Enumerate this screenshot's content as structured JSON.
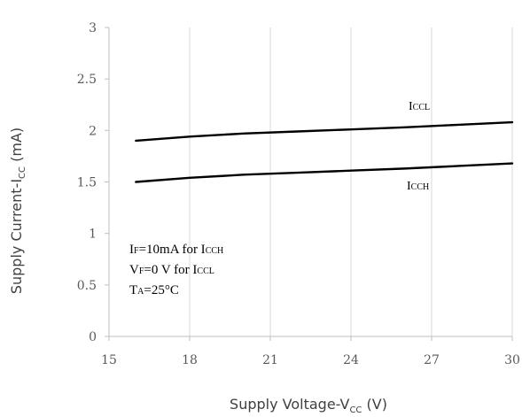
{
  "chart_data": {
    "type": "line",
    "xlabel": {
      "main": "Supply Voltage-V",
      "sub": "CC",
      "suffix": "  (V)"
    },
    "ylabel": {
      "main": "Supply Current-I",
      "sub": "CC",
      "suffix": " (mA)"
    },
    "xlim": [
      15,
      30
    ],
    "ylim": [
      0,
      3
    ],
    "xticks": [
      15,
      18,
      21,
      24,
      27,
      30
    ],
    "yticks": [
      0,
      0.5,
      1,
      1.5,
      2,
      2.5,
      3
    ],
    "xtick_labels": [
      "15",
      "18",
      "21",
      "24",
      "27",
      "30"
    ],
    "ytick_labels": [
      "0",
      "0.5",
      "1",
      "1.5",
      "2",
      "2.5",
      "3"
    ],
    "grid": {
      "vertical": true,
      "horizontal": false
    },
    "series": [
      {
        "name": {
          "main": "I",
          "sub": "CCL"
        },
        "color": "#000000",
        "x": [
          16,
          18,
          20,
          22,
          24,
          26,
          28,
          30
        ],
        "y": [
          1.9,
          1.94,
          1.97,
          1.99,
          2.01,
          2.03,
          2.055,
          2.08
        ]
      },
      {
        "name": {
          "main": "I",
          "sub": "CCH"
        },
        "color": "#000000",
        "x": [
          16,
          18,
          20,
          22,
          24,
          26,
          28,
          30
        ],
        "y": [
          1.5,
          1.54,
          1.57,
          1.59,
          1.61,
          1.63,
          1.655,
          1.68
        ]
      }
    ],
    "annotations": [
      {
        "parts": [
          {
            "t": "I"
          },
          {
            "t": "F",
            "sub": true
          },
          {
            "t": "=10mA for I"
          },
          {
            "t": "CCH",
            "sub": true
          }
        ]
      },
      {
        "parts": [
          {
            "t": "V"
          },
          {
            "t": "F",
            "sub": true
          },
          {
            "t": "=0 V for I"
          },
          {
            "t": "CCL",
            "sub": true
          }
        ]
      },
      {
        "parts": [
          {
            "t": "T"
          },
          {
            "t": "A",
            "sub": true
          },
          {
            "t": "=25°C"
          }
        ]
      }
    ]
  }
}
